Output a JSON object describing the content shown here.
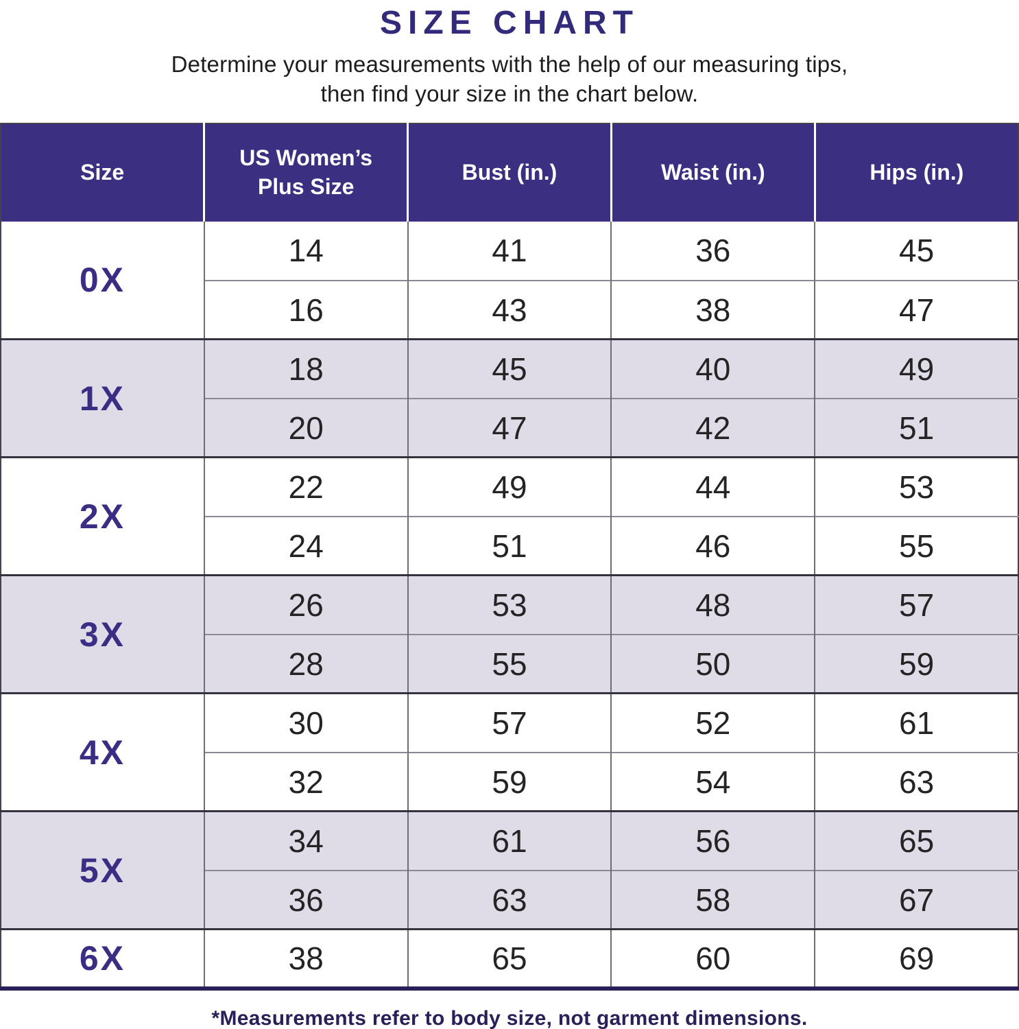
{
  "header": {
    "title": "SIZE CHART",
    "subtitle_line1": "Determine your measurements with the help of our measuring tips,",
    "subtitle_line2": "then find your size in the chart below."
  },
  "footnote": "*Measurements refer to body size, not garment dimensions.",
  "colors": {
    "header_bg": "#3B2F81",
    "title_text": "#322A7B",
    "size_label_text": "#3A2E84",
    "shaded_row_bg": "#DFDBE7",
    "cell_text": "#242424",
    "group_border": "#34333D",
    "subrow_border": "#8A8992",
    "column_border": "#6E6D76",
    "bottom_border": "#282159",
    "footnote_text": "#282159"
  },
  "chart_data": {
    "type": "table",
    "title": "SIZE CHART",
    "columns": [
      "Size",
      "US Women’s\nPlus Size",
      "Bust (in.)",
      "Waist (in.)",
      "Hips (in.)"
    ],
    "groups": [
      {
        "size": "0X",
        "shaded": false,
        "rows": [
          [
            14,
            41,
            36,
            45
          ],
          [
            16,
            43,
            38,
            47
          ]
        ]
      },
      {
        "size": "1X",
        "shaded": true,
        "rows": [
          [
            18,
            45,
            40,
            49
          ],
          [
            20,
            47,
            42,
            51
          ]
        ]
      },
      {
        "size": "2X",
        "shaded": false,
        "rows": [
          [
            22,
            49,
            44,
            53
          ],
          [
            24,
            51,
            46,
            55
          ]
        ]
      },
      {
        "size": "3X",
        "shaded": true,
        "rows": [
          [
            26,
            53,
            48,
            57
          ],
          [
            28,
            55,
            50,
            59
          ]
        ]
      },
      {
        "size": "4X",
        "shaded": false,
        "rows": [
          [
            30,
            57,
            52,
            61
          ],
          [
            32,
            59,
            54,
            63
          ]
        ]
      },
      {
        "size": "5X",
        "shaded": true,
        "rows": [
          [
            34,
            61,
            56,
            65
          ],
          [
            36,
            63,
            58,
            67
          ]
        ]
      },
      {
        "size": "6X",
        "shaded": false,
        "rows": [
          [
            38,
            65,
            60,
            69
          ]
        ]
      }
    ]
  }
}
